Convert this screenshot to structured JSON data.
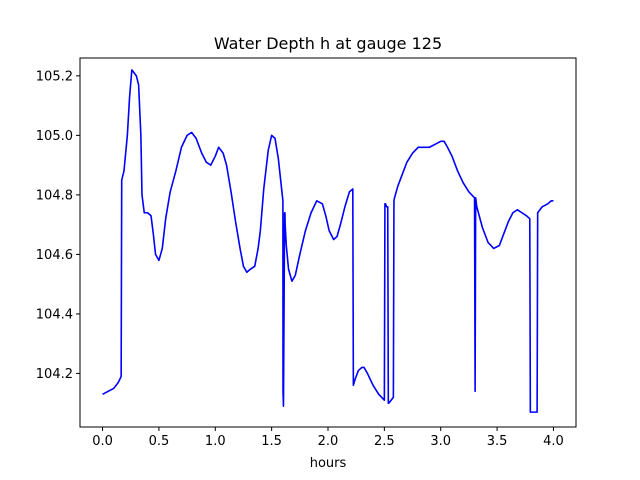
{
  "chart_data": {
    "type": "line",
    "title": "Water Depth h at gauge 125",
    "xlabel": "hours",
    "ylabel": "",
    "xlim": [
      -0.2,
      4.2
    ],
    "ylim": [
      104.02,
      105.26
    ],
    "xticks": [
      0.0,
      0.5,
      1.0,
      1.5,
      2.0,
      2.5,
      3.0,
      3.5,
      4.0
    ],
    "xtick_labels": [
      "0.0",
      "0.5",
      "1.0",
      "1.5",
      "2.0",
      "2.5",
      "3.0",
      "3.5",
      "4.0"
    ],
    "yticks": [
      104.2,
      104.4,
      104.6,
      104.8,
      105.0,
      105.2
    ],
    "ytick_labels": [
      "104.2",
      "104.4",
      "104.6",
      "104.8",
      "105.0",
      "105.2"
    ],
    "grid": false,
    "legend": "none",
    "series": [
      {
        "color": "#0000ff",
        "x": [
          0.0,
          0.05,
          0.1,
          0.14,
          0.165,
          0.17,
          0.19,
          0.22,
          0.24,
          0.26,
          0.28,
          0.3,
          0.32,
          0.34,
          0.35,
          0.37,
          0.4,
          0.43,
          0.45,
          0.47,
          0.5,
          0.53,
          0.56,
          0.6,
          0.65,
          0.7,
          0.75,
          0.79,
          0.83,
          0.88,
          0.92,
          0.96,
          1.0,
          1.03,
          1.07,
          1.1,
          1.14,
          1.18,
          1.22,
          1.25,
          1.28,
          1.31,
          1.35,
          1.38,
          1.4,
          1.43,
          1.47,
          1.5,
          1.53,
          1.56,
          1.58,
          1.6,
          1.601,
          1.605,
          1.615,
          1.618,
          1.62,
          1.63,
          1.65,
          1.68,
          1.71,
          1.75,
          1.8,
          1.85,
          1.9,
          1.95,
          1.98,
          2.01,
          2.05,
          2.08,
          2.11,
          2.15,
          2.19,
          2.22,
          2.225,
          2.24,
          2.27,
          2.3,
          2.32,
          2.35,
          2.4,
          2.45,
          2.5,
          2.505,
          2.51,
          2.52,
          2.53,
          2.535,
          2.54,
          2.56,
          2.58,
          2.585,
          2.59,
          2.62,
          2.66,
          2.7,
          2.75,
          2.8,
          2.85,
          2.9,
          2.95,
          3.0,
          3.03,
          3.06,
          3.1,
          3.15,
          3.2,
          3.25,
          3.3,
          3.305,
          3.31,
          3.32,
          3.37,
          3.42,
          3.47,
          3.52,
          3.56,
          3.6,
          3.64,
          3.68,
          3.72,
          3.76,
          3.79,
          3.795,
          3.8,
          3.85,
          3.855,
          3.86,
          3.9,
          3.95,
          3.98,
          4.0
        ],
        "y": [
          104.13,
          104.14,
          104.15,
          104.17,
          104.19,
          104.85,
          104.88,
          105.0,
          105.13,
          105.22,
          105.21,
          105.2,
          105.17,
          105.0,
          104.8,
          104.74,
          104.74,
          104.73,
          104.67,
          104.6,
          104.58,
          104.62,
          104.72,
          104.81,
          104.88,
          104.96,
          105.0,
          105.01,
          104.99,
          104.94,
          104.91,
          104.9,
          104.93,
          104.96,
          104.94,
          104.9,
          104.81,
          104.71,
          104.62,
          104.56,
          104.54,
          104.55,
          104.56,
          104.62,
          104.68,
          104.82,
          104.95,
          105.0,
          104.99,
          104.92,
          104.85,
          104.78,
          104.14,
          104.09,
          104.74,
          104.74,
          104.7,
          104.63,
          104.55,
          104.51,
          104.53,
          104.6,
          104.68,
          104.74,
          104.78,
          104.77,
          104.73,
          104.68,
          104.65,
          104.66,
          104.7,
          104.76,
          104.81,
          104.82,
          104.16,
          104.18,
          104.21,
          104.22,
          104.22,
          104.2,
          104.16,
          104.13,
          104.11,
          104.77,
          104.77,
          104.76,
          104.76,
          104.1,
          104.1,
          104.11,
          104.12,
          104.78,
          104.79,
          104.83,
          104.87,
          104.91,
          104.94,
          104.96,
          104.96,
          104.96,
          104.97,
          104.98,
          104.98,
          104.96,
          104.93,
          104.88,
          104.84,
          104.81,
          104.79,
          104.14,
          104.79,
          104.76,
          104.69,
          104.64,
          104.62,
          104.63,
          104.67,
          104.71,
          104.74,
          104.75,
          104.74,
          104.73,
          104.72,
          104.07,
          104.07,
          104.07,
          104.07,
          104.74,
          104.76,
          104.77,
          104.78,
          104.78
        ]
      }
    ]
  }
}
